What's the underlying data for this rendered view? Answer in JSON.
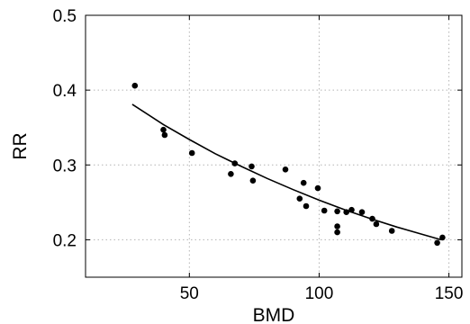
{
  "chart_data": {
    "type": "scatter",
    "title": "",
    "xlabel": "BMD",
    "ylabel": "RR",
    "xlim": [
      10,
      155
    ],
    "ylim": [
      0.15,
      0.5
    ],
    "xticks": [
      50,
      100,
      150
    ],
    "yticks": [
      0.2,
      0.3,
      0.4,
      0.5
    ],
    "xtick_labels": [
      "50",
      "100",
      "150"
    ],
    "ytick_labels": [
      "0.2",
      "0.3",
      "0.4",
      "0.5"
    ],
    "grid": true,
    "legend": "none",
    "points": [
      {
        "x": 29,
        "y": 0.406
      },
      {
        "x": 40,
        "y": 0.347
      },
      {
        "x": 40.5,
        "y": 0.34
      },
      {
        "x": 51,
        "y": 0.316
      },
      {
        "x": 66,
        "y": 0.288
      },
      {
        "x": 67.5,
        "y": 0.302
      },
      {
        "x": 74,
        "y": 0.298
      },
      {
        "x": 74.5,
        "y": 0.279
      },
      {
        "x": 87,
        "y": 0.294
      },
      {
        "x": 92.5,
        "y": 0.255
      },
      {
        "x": 94,
        "y": 0.276
      },
      {
        "x": 95,
        "y": 0.245
      },
      {
        "x": 99.5,
        "y": 0.269
      },
      {
        "x": 102,
        "y": 0.239
      },
      {
        "x": 107,
        "y": 0.238
      },
      {
        "x": 107,
        "y": 0.218
      },
      {
        "x": 107,
        "y": 0.21
      },
      {
        "x": 110.5,
        "y": 0.237
      },
      {
        "x": 112.5,
        "y": 0.24
      },
      {
        "x": 116.5,
        "y": 0.237
      },
      {
        "x": 120.5,
        "y": 0.228
      },
      {
        "x": 122,
        "y": 0.221
      },
      {
        "x": 128,
        "y": 0.212
      },
      {
        "x": 145.5,
        "y": 0.196
      },
      {
        "x": 147.5,
        "y": 0.203
      }
    ],
    "fit_curve": {
      "x": [
        28,
        40,
        50,
        60,
        70,
        80,
        90,
        100,
        110,
        120,
        130,
        140,
        147
      ],
      "y": [
        0.381,
        0.354,
        0.334,
        0.315,
        0.298,
        0.282,
        0.267,
        0.253,
        0.24,
        0.228,
        0.217,
        0.207,
        0.2
      ]
    },
    "colors": {
      "points": "#000000",
      "line": "#000000",
      "grid": "#b4b4b4",
      "axes": "#000000"
    }
  }
}
